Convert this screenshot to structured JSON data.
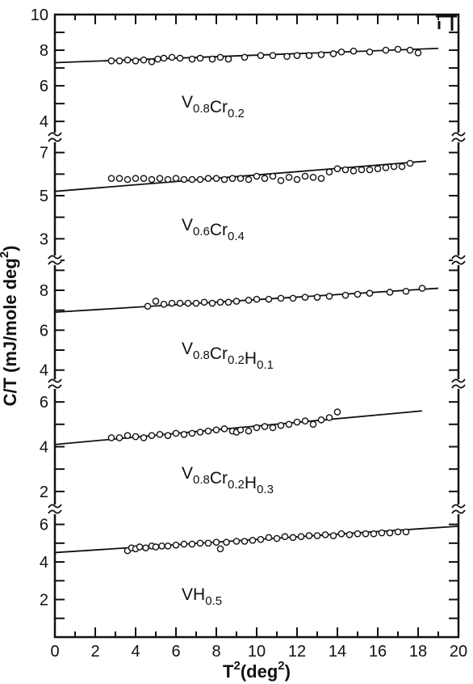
{
  "chart_data": {
    "type": "scatter",
    "xlabel_main": "T",
    "xlabel_sup": "2",
    "xlabel_rest": "(deg",
    "xlabel_sup2": "2",
    "xlabel_close": ")",
    "ylabel_main": "C/T (mJ/mole deg",
    "ylabel_sup": "2",
    "ylabel_close": ")",
    "xlim": [
      0,
      20
    ],
    "x_ticks": [
      "0",
      "2",
      "4",
      "6",
      "8",
      "10",
      "12",
      "14",
      "16",
      "18",
      "20"
    ],
    "panels": [
      {
        "name": "V0.8Cr0.2",
        "label_parts": [
          [
            "V",
            "0.8"
          ],
          [
            "Cr",
            "0.2"
          ]
        ],
        "ylim": [
          3.1,
          10
        ],
        "y_ticks": [
          "10",
          "8",
          "6",
          "4"
        ],
        "fit": {
          "x": [
            0,
            19
          ],
          "y": [
            7.3,
            8.1
          ]
        },
        "points": [
          [
            2.8,
            7.4
          ],
          [
            3.2,
            7.4
          ],
          [
            3.6,
            7.45
          ],
          [
            4.0,
            7.4
          ],
          [
            4.4,
            7.45
          ],
          [
            4.8,
            7.35
          ],
          [
            5.1,
            7.5
          ],
          [
            5.4,
            7.55
          ],
          [
            5.8,
            7.6
          ],
          [
            6.2,
            7.55
          ],
          [
            6.8,
            7.5
          ],
          [
            7.2,
            7.55
          ],
          [
            7.8,
            7.5
          ],
          [
            8.2,
            7.6
          ],
          [
            8.6,
            7.5
          ],
          [
            9.4,
            7.6
          ],
          [
            10.2,
            7.7
          ],
          [
            10.8,
            7.7
          ],
          [
            11.5,
            7.65
          ],
          [
            12.0,
            7.7
          ],
          [
            12.6,
            7.7
          ],
          [
            13.2,
            7.75
          ],
          [
            13.8,
            7.8
          ],
          [
            14.2,
            7.9
          ],
          [
            14.8,
            7.95
          ],
          [
            15.6,
            7.9
          ],
          [
            16.4,
            8.0
          ],
          [
            17.0,
            8.05
          ],
          [
            17.6,
            8.0
          ],
          [
            18.0,
            7.85
          ]
        ]
      },
      {
        "name": "V0.6Cr0.4",
        "label_parts": [
          [
            "V",
            "0.6"
          ],
          [
            "Cr",
            "0.4"
          ]
        ],
        "ylim": [
          2.0,
          7.7
        ],
        "y_ticks": [
          "7",
          "5",
          "3"
        ],
        "fit": {
          "x": [
            0,
            18.4
          ],
          "y": [
            5.2,
            6.6
          ]
        },
        "points": [
          [
            2.8,
            5.8
          ],
          [
            3.2,
            5.8
          ],
          [
            3.6,
            5.75
          ],
          [
            4.0,
            5.8
          ],
          [
            4.4,
            5.8
          ],
          [
            4.8,
            5.75
          ],
          [
            5.2,
            5.8
          ],
          [
            5.6,
            5.75
          ],
          [
            6.0,
            5.8
          ],
          [
            6.4,
            5.75
          ],
          [
            6.8,
            5.75
          ],
          [
            7.2,
            5.75
          ],
          [
            7.6,
            5.8
          ],
          [
            8.0,
            5.8
          ],
          [
            8.4,
            5.75
          ],
          [
            8.8,
            5.8
          ],
          [
            9.2,
            5.8
          ],
          [
            9.6,
            5.75
          ],
          [
            10.0,
            5.9
          ],
          [
            10.4,
            5.8
          ],
          [
            10.8,
            5.9
          ],
          [
            11.2,
            5.7
          ],
          [
            11.6,
            5.85
          ],
          [
            12.0,
            5.75
          ],
          [
            12.4,
            5.9
          ],
          [
            12.8,
            5.85
          ],
          [
            13.2,
            5.8
          ],
          [
            13.6,
            6.1
          ],
          [
            14.0,
            6.25
          ],
          [
            14.4,
            6.2
          ],
          [
            14.8,
            6.15
          ],
          [
            15.2,
            6.2
          ],
          [
            15.6,
            6.2
          ],
          [
            16.0,
            6.25
          ],
          [
            16.4,
            6.3
          ],
          [
            16.8,
            6.35
          ],
          [
            17.2,
            6.35
          ],
          [
            17.6,
            6.5
          ]
        ]
      },
      {
        "name": "V0.8Cr0.2H0.1",
        "label_parts": [
          [
            "V",
            "0.8"
          ],
          [
            "Cr",
            "0.2"
          ],
          [
            "H",
            "0.1"
          ]
        ],
        "ylim": [
          3.3,
          9.5
        ],
        "y_ticks": [
          "8",
          "6",
          "4"
        ],
        "fit": {
          "x": [
            0,
            19
          ],
          "y": [
            6.9,
            8.1
          ]
        },
        "points": [
          [
            4.6,
            7.2
          ],
          [
            5.0,
            7.45
          ],
          [
            5.4,
            7.3
          ],
          [
            5.8,
            7.35
          ],
          [
            6.2,
            7.35
          ],
          [
            6.6,
            7.35
          ],
          [
            7.0,
            7.35
          ],
          [
            7.4,
            7.4
          ],
          [
            7.8,
            7.35
          ],
          [
            8.2,
            7.4
          ],
          [
            8.6,
            7.4
          ],
          [
            9.0,
            7.45
          ],
          [
            9.6,
            7.5
          ],
          [
            10.0,
            7.55
          ],
          [
            10.6,
            7.55
          ],
          [
            11.2,
            7.6
          ],
          [
            11.8,
            7.6
          ],
          [
            12.4,
            7.65
          ],
          [
            13.0,
            7.65
          ],
          [
            13.6,
            7.7
          ],
          [
            14.4,
            7.75
          ],
          [
            15.0,
            7.8
          ],
          [
            15.6,
            7.85
          ],
          [
            16.6,
            7.9
          ],
          [
            17.4,
            7.95
          ],
          [
            18.2,
            8.1
          ]
        ]
      },
      {
        "name": "V0.8Cr0.2H0.3",
        "label_parts": [
          [
            "V",
            "0.8"
          ],
          [
            "Cr",
            "0.2"
          ],
          [
            "H",
            "0.3"
          ]
        ],
        "ylim": [
          1.2,
          6.8
        ],
        "y_ticks": [
          "6",
          "4",
          "2"
        ],
        "fit": {
          "x": [
            0,
            18.2
          ],
          "y": [
            4.1,
            5.6
          ]
        },
        "points": [
          [
            2.8,
            4.4
          ],
          [
            3.2,
            4.4
          ],
          [
            3.6,
            4.5
          ],
          [
            4.0,
            4.45
          ],
          [
            4.4,
            4.4
          ],
          [
            4.8,
            4.5
          ],
          [
            5.2,
            4.55
          ],
          [
            5.6,
            4.5
          ],
          [
            6.0,
            4.6
          ],
          [
            6.4,
            4.55
          ],
          [
            6.8,
            4.6
          ],
          [
            7.2,
            4.65
          ],
          [
            7.6,
            4.7
          ],
          [
            8.0,
            4.75
          ],
          [
            8.4,
            4.8
          ],
          [
            8.8,
            4.7
          ],
          [
            9.0,
            4.65
          ],
          [
            9.2,
            4.75
          ],
          [
            9.6,
            4.7
          ],
          [
            10.0,
            4.85
          ],
          [
            10.4,
            4.9
          ],
          [
            10.8,
            4.85
          ],
          [
            11.2,
            4.95
          ],
          [
            11.6,
            5.0
          ],
          [
            12.0,
            5.1
          ],
          [
            12.4,
            5.15
          ],
          [
            12.8,
            5.0
          ],
          [
            13.2,
            5.2
          ],
          [
            13.6,
            5.3
          ],
          [
            14.0,
            5.55
          ]
        ]
      },
      {
        "name": "VH0.5",
        "label_parts": [
          [
            "VH",
            "0.5"
          ]
        ],
        "ylim": [
          0,
          6.8
        ],
        "y_ticks": [
          "6",
          "4",
          "2"
        ],
        "fit": {
          "x": [
            0,
            20
          ],
          "y": [
            4.5,
            5.9
          ]
        },
        "points": [
          [
            3.6,
            4.6
          ],
          [
            3.8,
            4.75
          ],
          [
            4.0,
            4.7
          ],
          [
            4.2,
            4.8
          ],
          [
            4.5,
            4.75
          ],
          [
            4.8,
            4.85
          ],
          [
            5.0,
            4.8
          ],
          [
            5.3,
            4.85
          ],
          [
            5.6,
            4.85
          ],
          [
            6.0,
            4.9
          ],
          [
            6.4,
            4.95
          ],
          [
            6.8,
            4.95
          ],
          [
            7.2,
            5.0
          ],
          [
            7.6,
            5.0
          ],
          [
            8.0,
            5.05
          ],
          [
            8.2,
            4.7
          ],
          [
            8.5,
            5.05
          ],
          [
            9.0,
            5.1
          ],
          [
            9.4,
            5.1
          ],
          [
            9.8,
            5.15
          ],
          [
            10.2,
            5.2
          ],
          [
            10.6,
            5.3
          ],
          [
            11.0,
            5.25
          ],
          [
            11.4,
            5.35
          ],
          [
            11.8,
            5.3
          ],
          [
            12.2,
            5.35
          ],
          [
            12.6,
            5.4
          ],
          [
            13.0,
            5.4
          ],
          [
            13.4,
            5.45
          ],
          [
            13.8,
            5.4
          ],
          [
            14.2,
            5.5
          ],
          [
            14.6,
            5.45
          ],
          [
            15.0,
            5.5
          ],
          [
            15.4,
            5.5
          ],
          [
            15.8,
            5.5
          ],
          [
            16.2,
            5.55
          ],
          [
            16.6,
            5.55
          ],
          [
            17.0,
            5.6
          ],
          [
            17.4,
            5.6
          ]
        ]
      }
    ]
  }
}
